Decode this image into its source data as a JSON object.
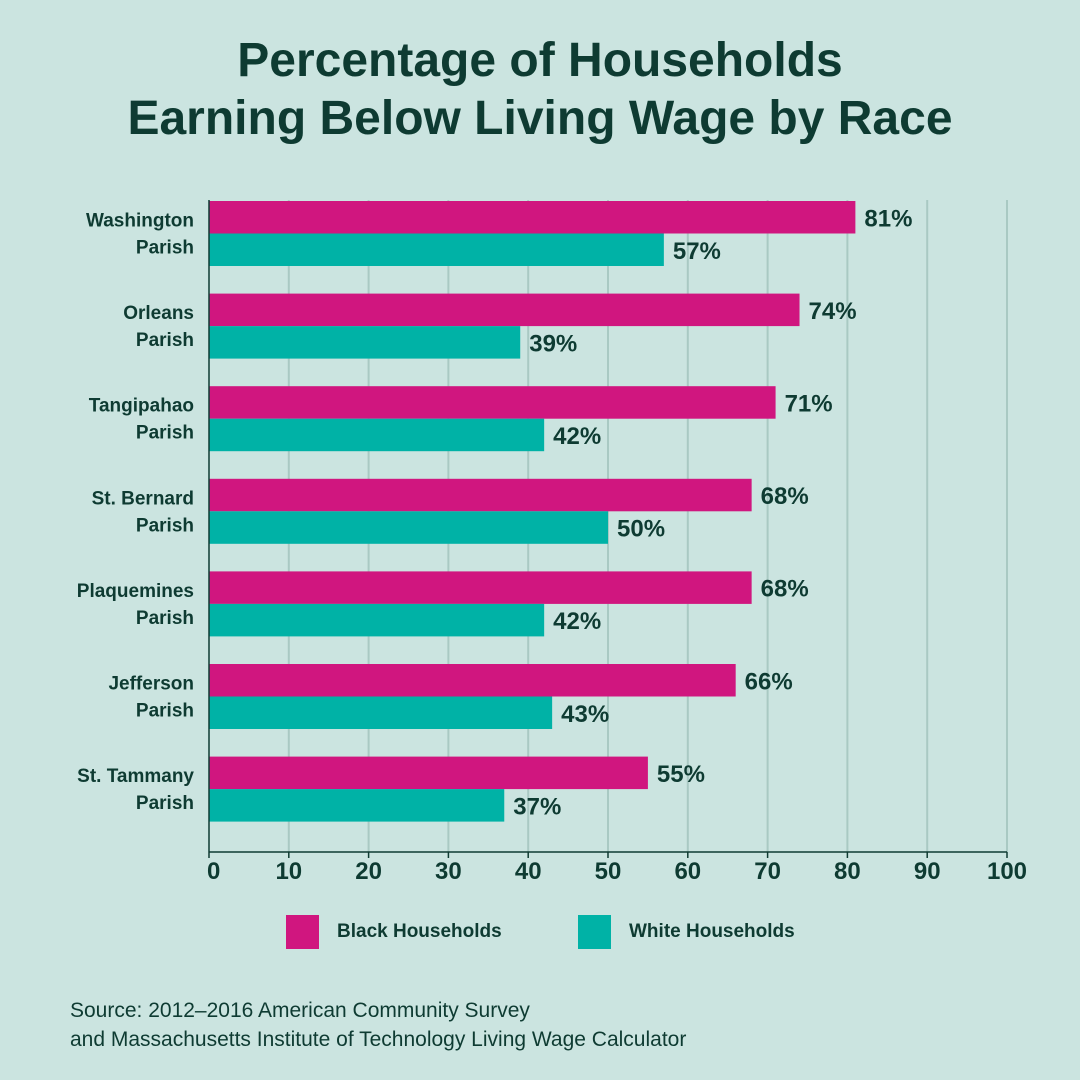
{
  "chart_data": {
    "type": "bar",
    "orientation": "horizontal",
    "title": [
      "Percentage of Households",
      "Earning Below Living Wage by Race"
    ],
    "categories": [
      [
        "Washington",
        "Parish"
      ],
      [
        "Orleans",
        "Parish"
      ],
      [
        "Tangipahao",
        "Parish"
      ],
      [
        "St. Bernard",
        "Parish"
      ],
      [
        "Plaquemines",
        "Parish"
      ],
      [
        "Jefferson",
        "Parish"
      ],
      [
        "St. Tammany",
        "Parish"
      ]
    ],
    "series": [
      {
        "name": "Black Households",
        "color": "#d0167f",
        "values": [
          81,
          74,
          71,
          68,
          68,
          66,
          55
        ],
        "labels": [
          "81%",
          "74%",
          "71%",
          "68%",
          "68%",
          "66%",
          "55%"
        ]
      },
      {
        "name": "White Households",
        "color": "#00b2a6",
        "values": [
          57,
          39,
          42,
          50,
          42,
          43,
          37
        ],
        "labels": [
          "57%",
          "39%",
          "42%",
          "50%",
          "42%",
          "43%",
          "37%"
        ]
      }
    ],
    "x_ticks": [
      "0",
      "10",
      "20",
      "30",
      "40",
      "50",
      "60",
      "70",
      "80",
      "90",
      "100"
    ],
    "xlim": [
      0,
      100
    ],
    "grid": true,
    "legend_position": "bottom"
  },
  "source": {
    "lines": [
      "Source: 2012–2016 American Community Survey",
      "and Massachusetts Institute of Technology Living Wage Calculator"
    ]
  },
  "colors": {
    "background": "#cbe4e0",
    "text": "#0e3b32",
    "grid": "#a9c9c3"
  }
}
